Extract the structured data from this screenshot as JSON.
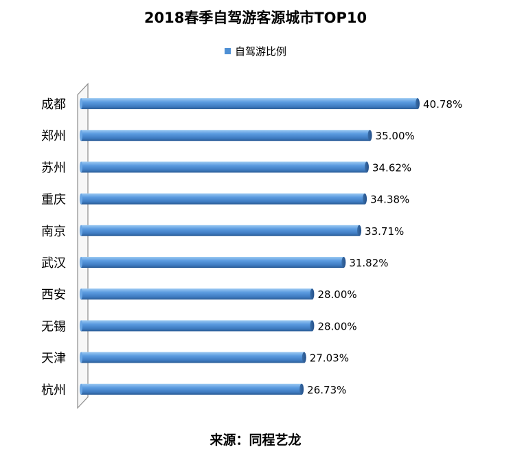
{
  "title": "2018春季自驾游客源城市TOP10",
  "source": "来源：同程艺龙",
  "colors": {
    "bar": "#4e8fd4",
    "bar_dark": "#2f5f94",
    "bar_light": "#8fc0ee"
  },
  "chart_data": {
    "type": "bar",
    "orientation": "horizontal",
    "title": "2018春季自驾游客源城市TOP10",
    "categories": [
      "成都",
      "郑州",
      "苏州",
      "重庆",
      "南京",
      "武汉",
      "西安",
      "无锡",
      "天津",
      "杭州"
    ],
    "series": [
      {
        "name": "自驾游比例",
        "values": [
          40.78,
          35.0,
          34.62,
          34.38,
          33.71,
          31.82,
          28.0,
          28.0,
          27.03,
          26.73
        ],
        "labels": [
          "40.78%",
          "35.00%",
          "34.62%",
          "34.38%",
          "33.71%",
          "31.82%",
          "28.00%",
          "28.00%",
          "27.03%",
          "26.73%"
        ]
      }
    ],
    "xlim": [
      0,
      40.78
    ],
    "legend": "top",
    "grid": false
  }
}
